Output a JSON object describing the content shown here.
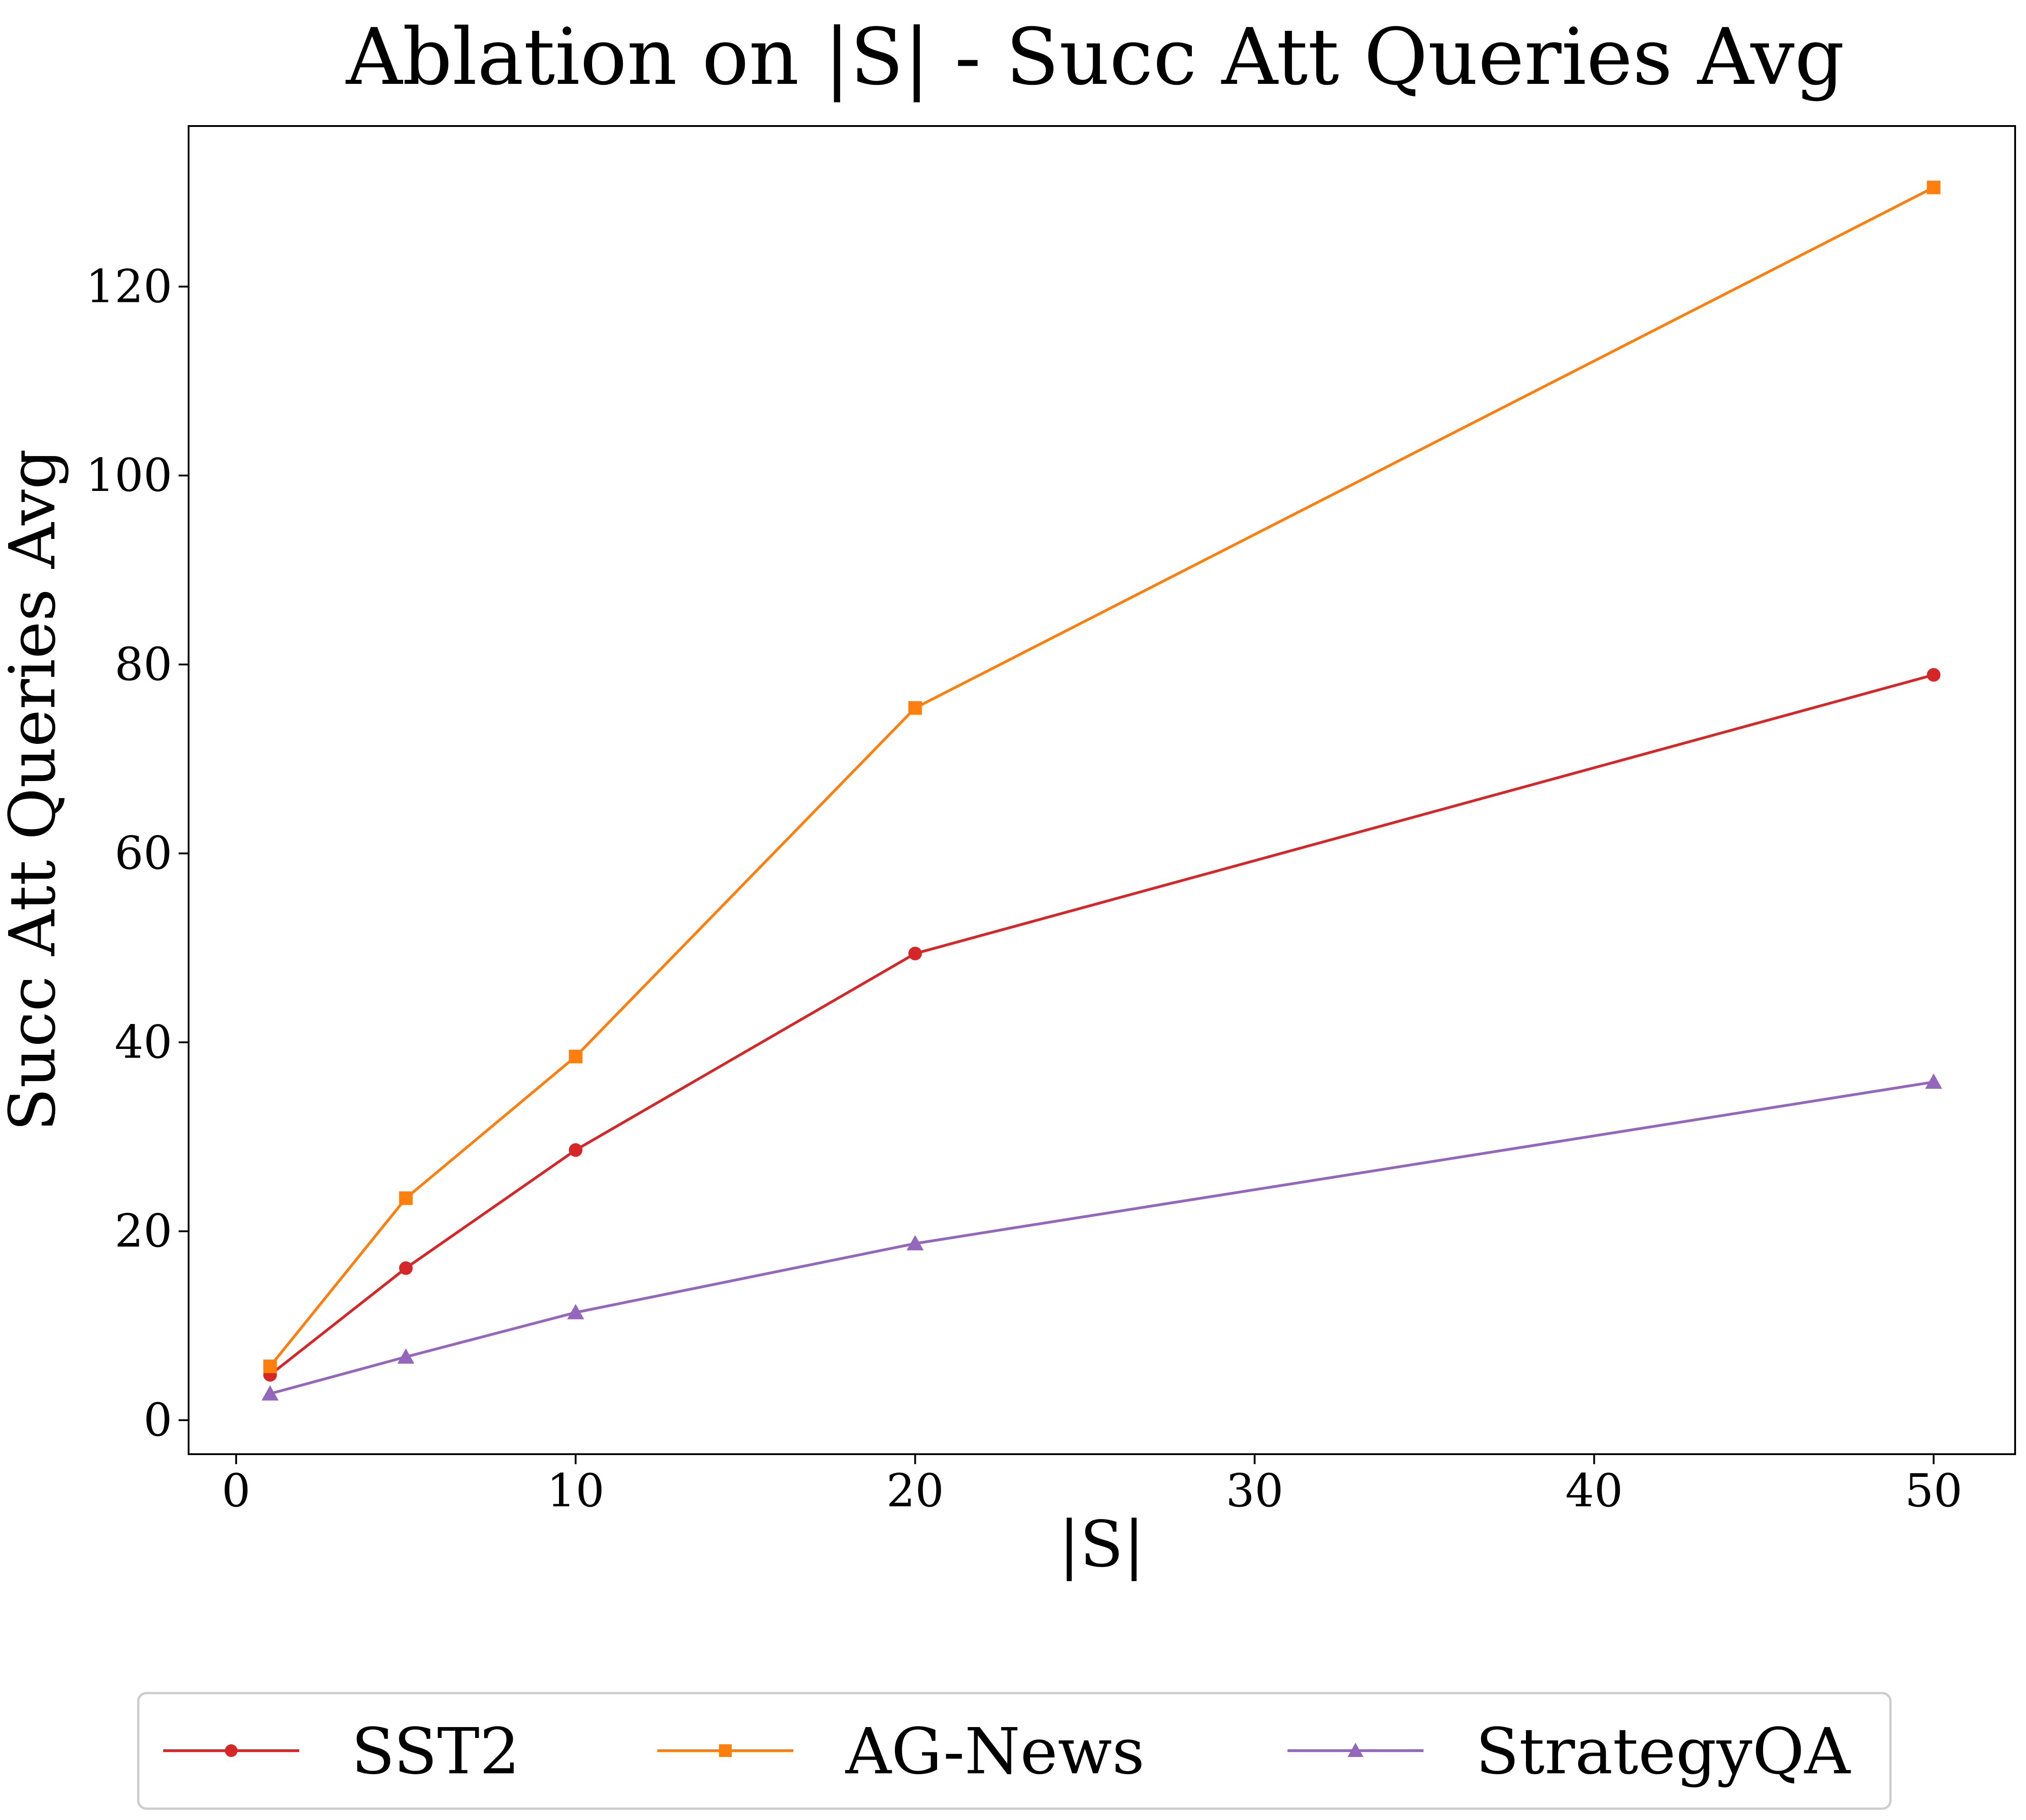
{
  "chart_data": {
    "type": "line",
    "title": "Ablation on |S| - Succ Att Queries Avg",
    "xlabel": "|S|",
    "ylabel": "Succ Att Queries Avg",
    "x": [
      1,
      5,
      10,
      20,
      50
    ],
    "xlim": [
      -1.4,
      52.4
    ],
    "ylim": [
      -3.6,
      137.0
    ],
    "xticks": [
      0,
      10,
      20,
      30,
      40,
      50
    ],
    "yticks": [
      0,
      20,
      40,
      60,
      80,
      100,
      120
    ],
    "grid": false,
    "legend_position": "bottom-center",
    "series": [
      {
        "name": "SST2",
        "color": "#d62728",
        "marker": "circle",
        "values": [
          4.8,
          16.1,
          28.6,
          49.4,
          78.9
        ]
      },
      {
        "name": "AG-News",
        "color": "#ff7f0e",
        "marker": "square",
        "values": [
          5.7,
          23.5,
          38.5,
          75.4,
          130.5
        ]
      },
      {
        "name": "StrategyQA",
        "color": "#9467bd",
        "marker": "triangle",
        "values": [
          2.8,
          6.7,
          11.4,
          18.7,
          35.8
        ]
      }
    ]
  }
}
